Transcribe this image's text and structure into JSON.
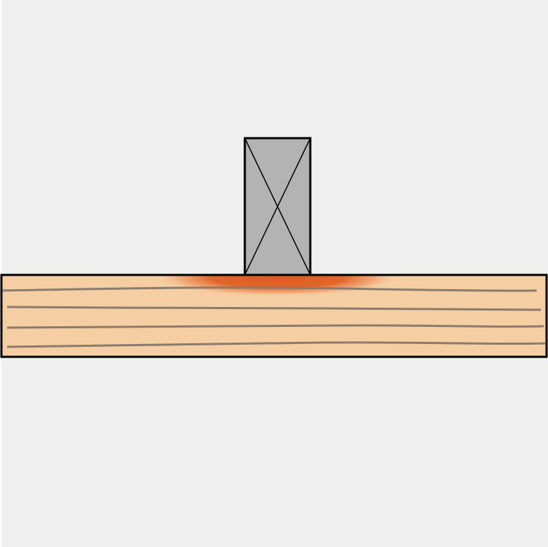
{
  "diagram": {
    "description_free": true,
    "colors": {
      "background": "#f0f0ef",
      "page_edge": "#ffffff",
      "beam_fill": "#f5cea3",
      "beam_stroke": "#000000",
      "grain": "#8c7b6d",
      "post_fill": "#b3b3b3",
      "post_stroke": "#000000",
      "contact_stress": "#e05a1e"
    },
    "icons": {
      "post": "post-cross-section-icon",
      "beam": "timber-beam-icon",
      "stress": "bearing-stress-zone"
    }
  }
}
